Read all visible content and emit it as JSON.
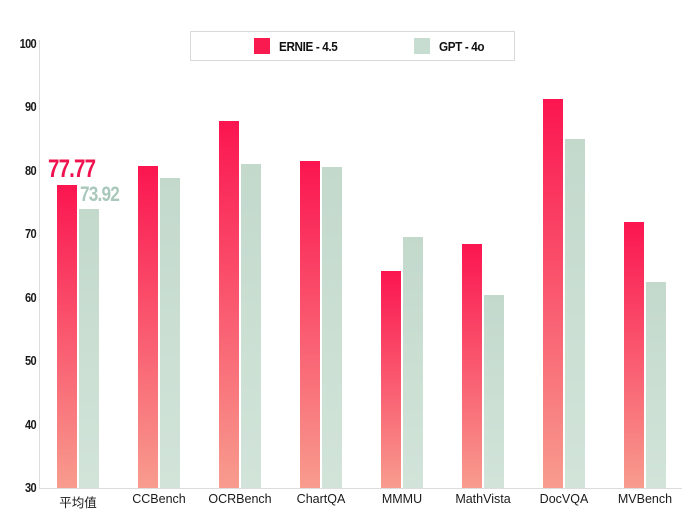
{
  "legend": {
    "entries": [
      {
        "label": "ERNIE - 4.5",
        "color": "#f91a4f"
      },
      {
        "label": "GPT - 4o",
        "color": "#c8ddd2"
      }
    ]
  },
  "chart_data": {
    "type": "bar",
    "title": "",
    "xlabel": "",
    "ylabel": "",
    "categories": [
      "平均值",
      "CCBench",
      "OCRBench",
      "ChartQA",
      "MMMU",
      "MathVista",
      "DocVQA",
      "MVBench"
    ],
    "series": [
      {
        "name": "ERNIE - 4.5",
        "values": [
          77.77,
          80.8,
          87.8,
          81.6,
          64.2,
          68.4,
          91.3,
          72.0
        ],
        "color_top": "#fb1550",
        "color_bottom": "#f89c8e"
      },
      {
        "name": "GPT - 4o",
        "values": [
          73.92,
          78.8,
          81.1,
          80.6,
          69.5,
          60.5,
          85.0,
          62.4
        ],
        "color_top": "#c3d9cc",
        "color_bottom": "#d2e4d9"
      }
    ],
    "annotations": [
      {
        "series": 0,
        "category_index": 0,
        "text": "77.77",
        "color": "#ef124e"
      },
      {
        "series": 1,
        "category_index": 0,
        "text": "73.92",
        "color": "#a9c8bb"
      }
    ],
    "ylim": [
      30,
      100
    ],
    "yticks": [
      100,
      90,
      80,
      70,
      60,
      50,
      40,
      30
    ],
    "grid": false,
    "legend_position": "top-center"
  }
}
